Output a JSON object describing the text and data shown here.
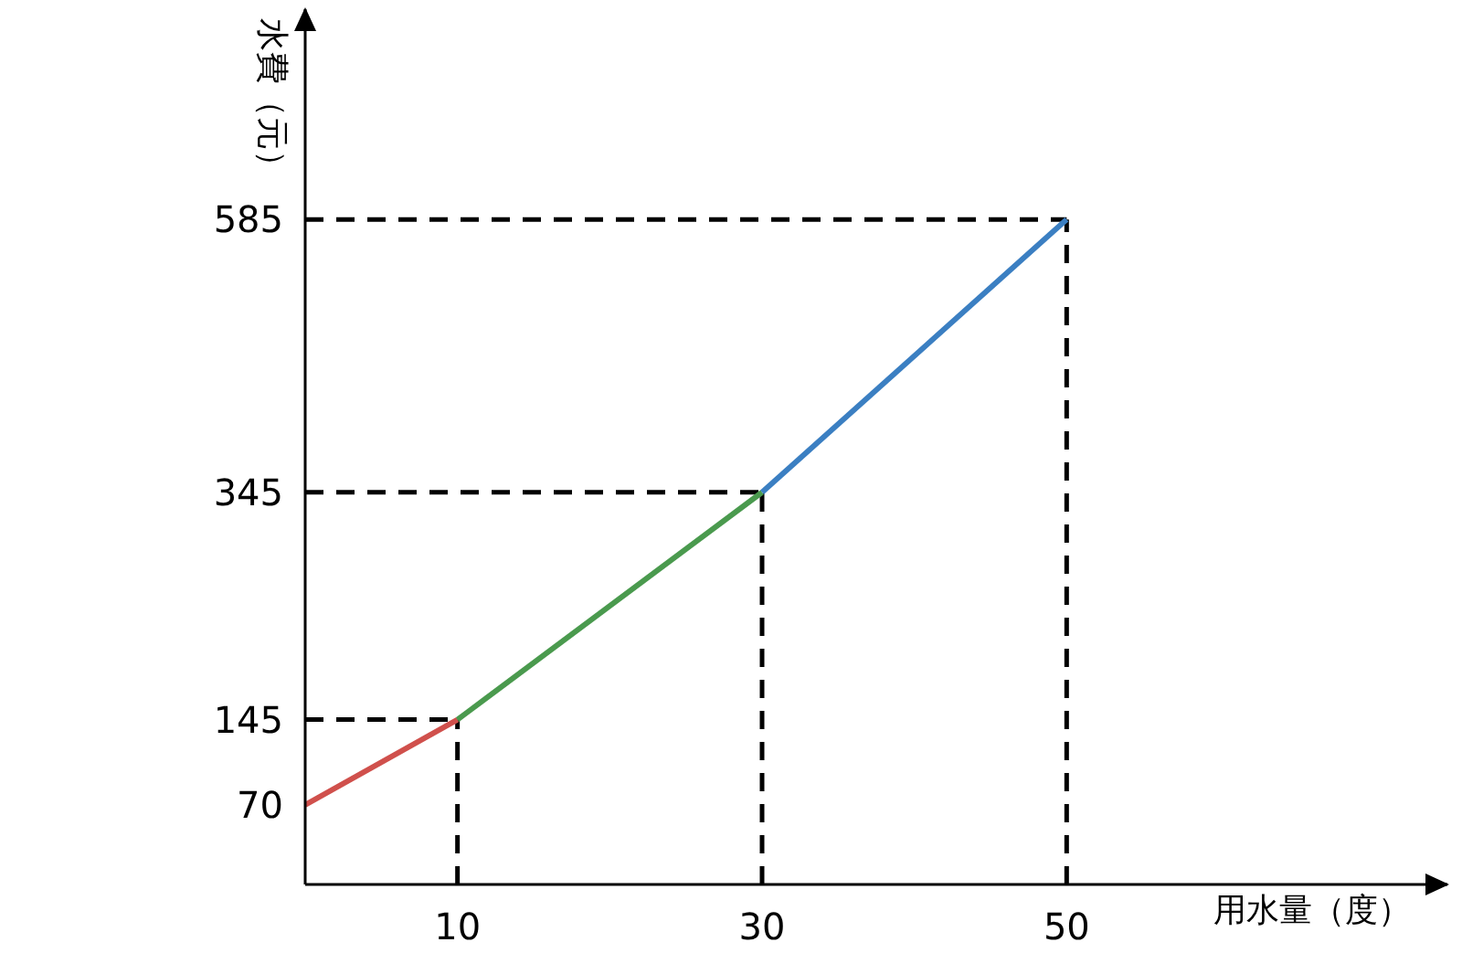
{
  "chart_data": {
    "type": "line",
    "xlabel": "用水量（度）",
    "ylabel": "水費（元）",
    "series": [
      {
        "color": "#d0504c",
        "x": [
          0,
          10
        ],
        "values": [
          70,
          145
        ]
      },
      {
        "color": "#4a9a4e",
        "x": [
          10,
          30
        ],
        "values": [
          145,
          345
        ]
      },
      {
        "color": "#3b7fc2",
        "x": [
          30,
          50
        ],
        "values": [
          345,
          585
        ]
      }
    ],
    "xlim": [
      0,
      75
    ],
    "ylim": [
      0,
      770
    ],
    "xticks": [
      10,
      30,
      50
    ],
    "yticks": [
      70,
      145,
      345,
      585
    ],
    "ref_lines": [
      {
        "axis": "y",
        "value": 145,
        "color": "#000000",
        "line_style": "dashed"
      },
      {
        "axis": "y",
        "value": 345,
        "color": "#000000",
        "line_style": "dashed"
      },
      {
        "axis": "y",
        "value": 585,
        "color": "#000000",
        "line_style": "dashed"
      },
      {
        "axis": "x",
        "value": 10,
        "color": "#000000",
        "line_style": "dashed"
      },
      {
        "axis": "x",
        "value": 30,
        "color": "#000000",
        "line_style": "dashed"
      },
      {
        "axis": "x",
        "value": 50,
        "color": "#000000",
        "line_style": "dashed"
      }
    ],
    "grid": false,
    "legend": false,
    "marker": "none",
    "line_style": "solid"
  }
}
